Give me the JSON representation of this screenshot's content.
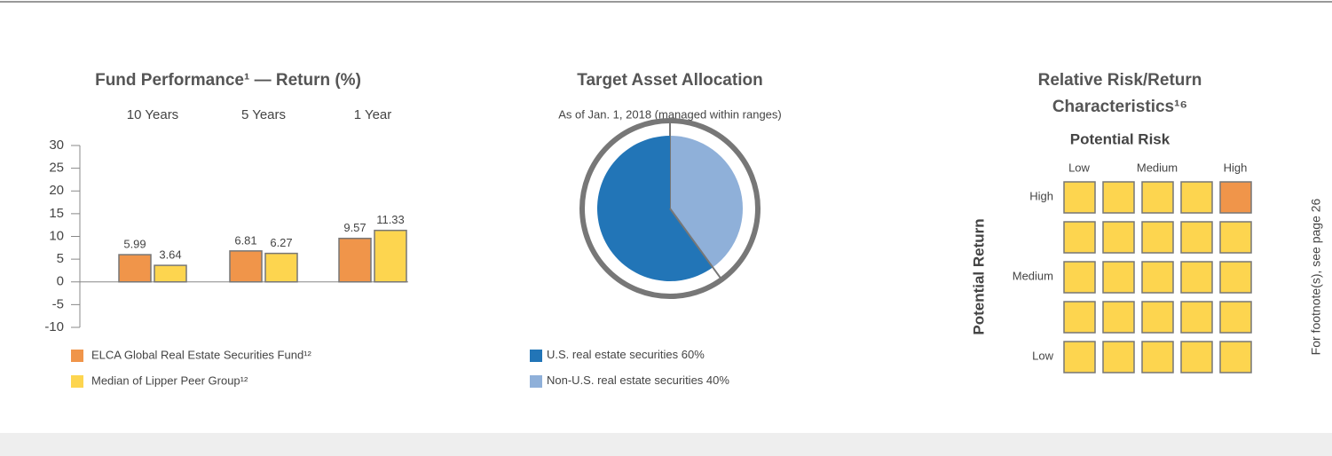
{
  "chart_data": [
    {
      "type": "bar",
      "title": "Fund Performance¹ — Return (%)",
      "categories": [
        "10 Years",
        "5 Years",
        "1 Year"
      ],
      "series": [
        {
          "name": "ELCA Global Real Estate Securities Fund¹²",
          "color": "#f0954a",
          "values": [
            5.99,
            6.81,
            9.57
          ]
        },
        {
          "name": "Median of Lipper Peer Group¹²",
          "color": "#fdd54f",
          "values": [
            3.64,
            6.27,
            11.33
          ]
        }
      ],
      "ylim": [
        -10,
        30
      ],
      "yticks": [
        -10,
        -5,
        0,
        5,
        10,
        15,
        20,
        25,
        30
      ]
    },
    {
      "type": "pie",
      "title": "Target Asset Allocation",
      "subtitle": "As of Jan. 1, 2018 (managed within ranges)",
      "categories": [
        "U.S. real estate securities",
        "Non-U.S. real estate securities"
      ],
      "values": [
        60,
        40
      ],
      "value_labels": [
        "60%",
        "40%"
      ],
      "colors": [
        "#2275b7",
        "#8fb0d9"
      ]
    }
  ],
  "risk_return": {
    "title_lines": [
      "Relative Risk/Return",
      "Characteristics¹⁶"
    ],
    "x_title": "Potential Risk",
    "x_labels": [
      "Low",
      "Medium",
      "High"
    ],
    "y_title": "Potential Return",
    "y_labels": [
      "High",
      "Medium",
      "Low"
    ],
    "cell_color": "#fdd54f",
    "highlight_color": "#f0954a",
    "highlight": {
      "row": 0,
      "col": 4
    }
  },
  "footnote": "For footnote(s), see page 26"
}
